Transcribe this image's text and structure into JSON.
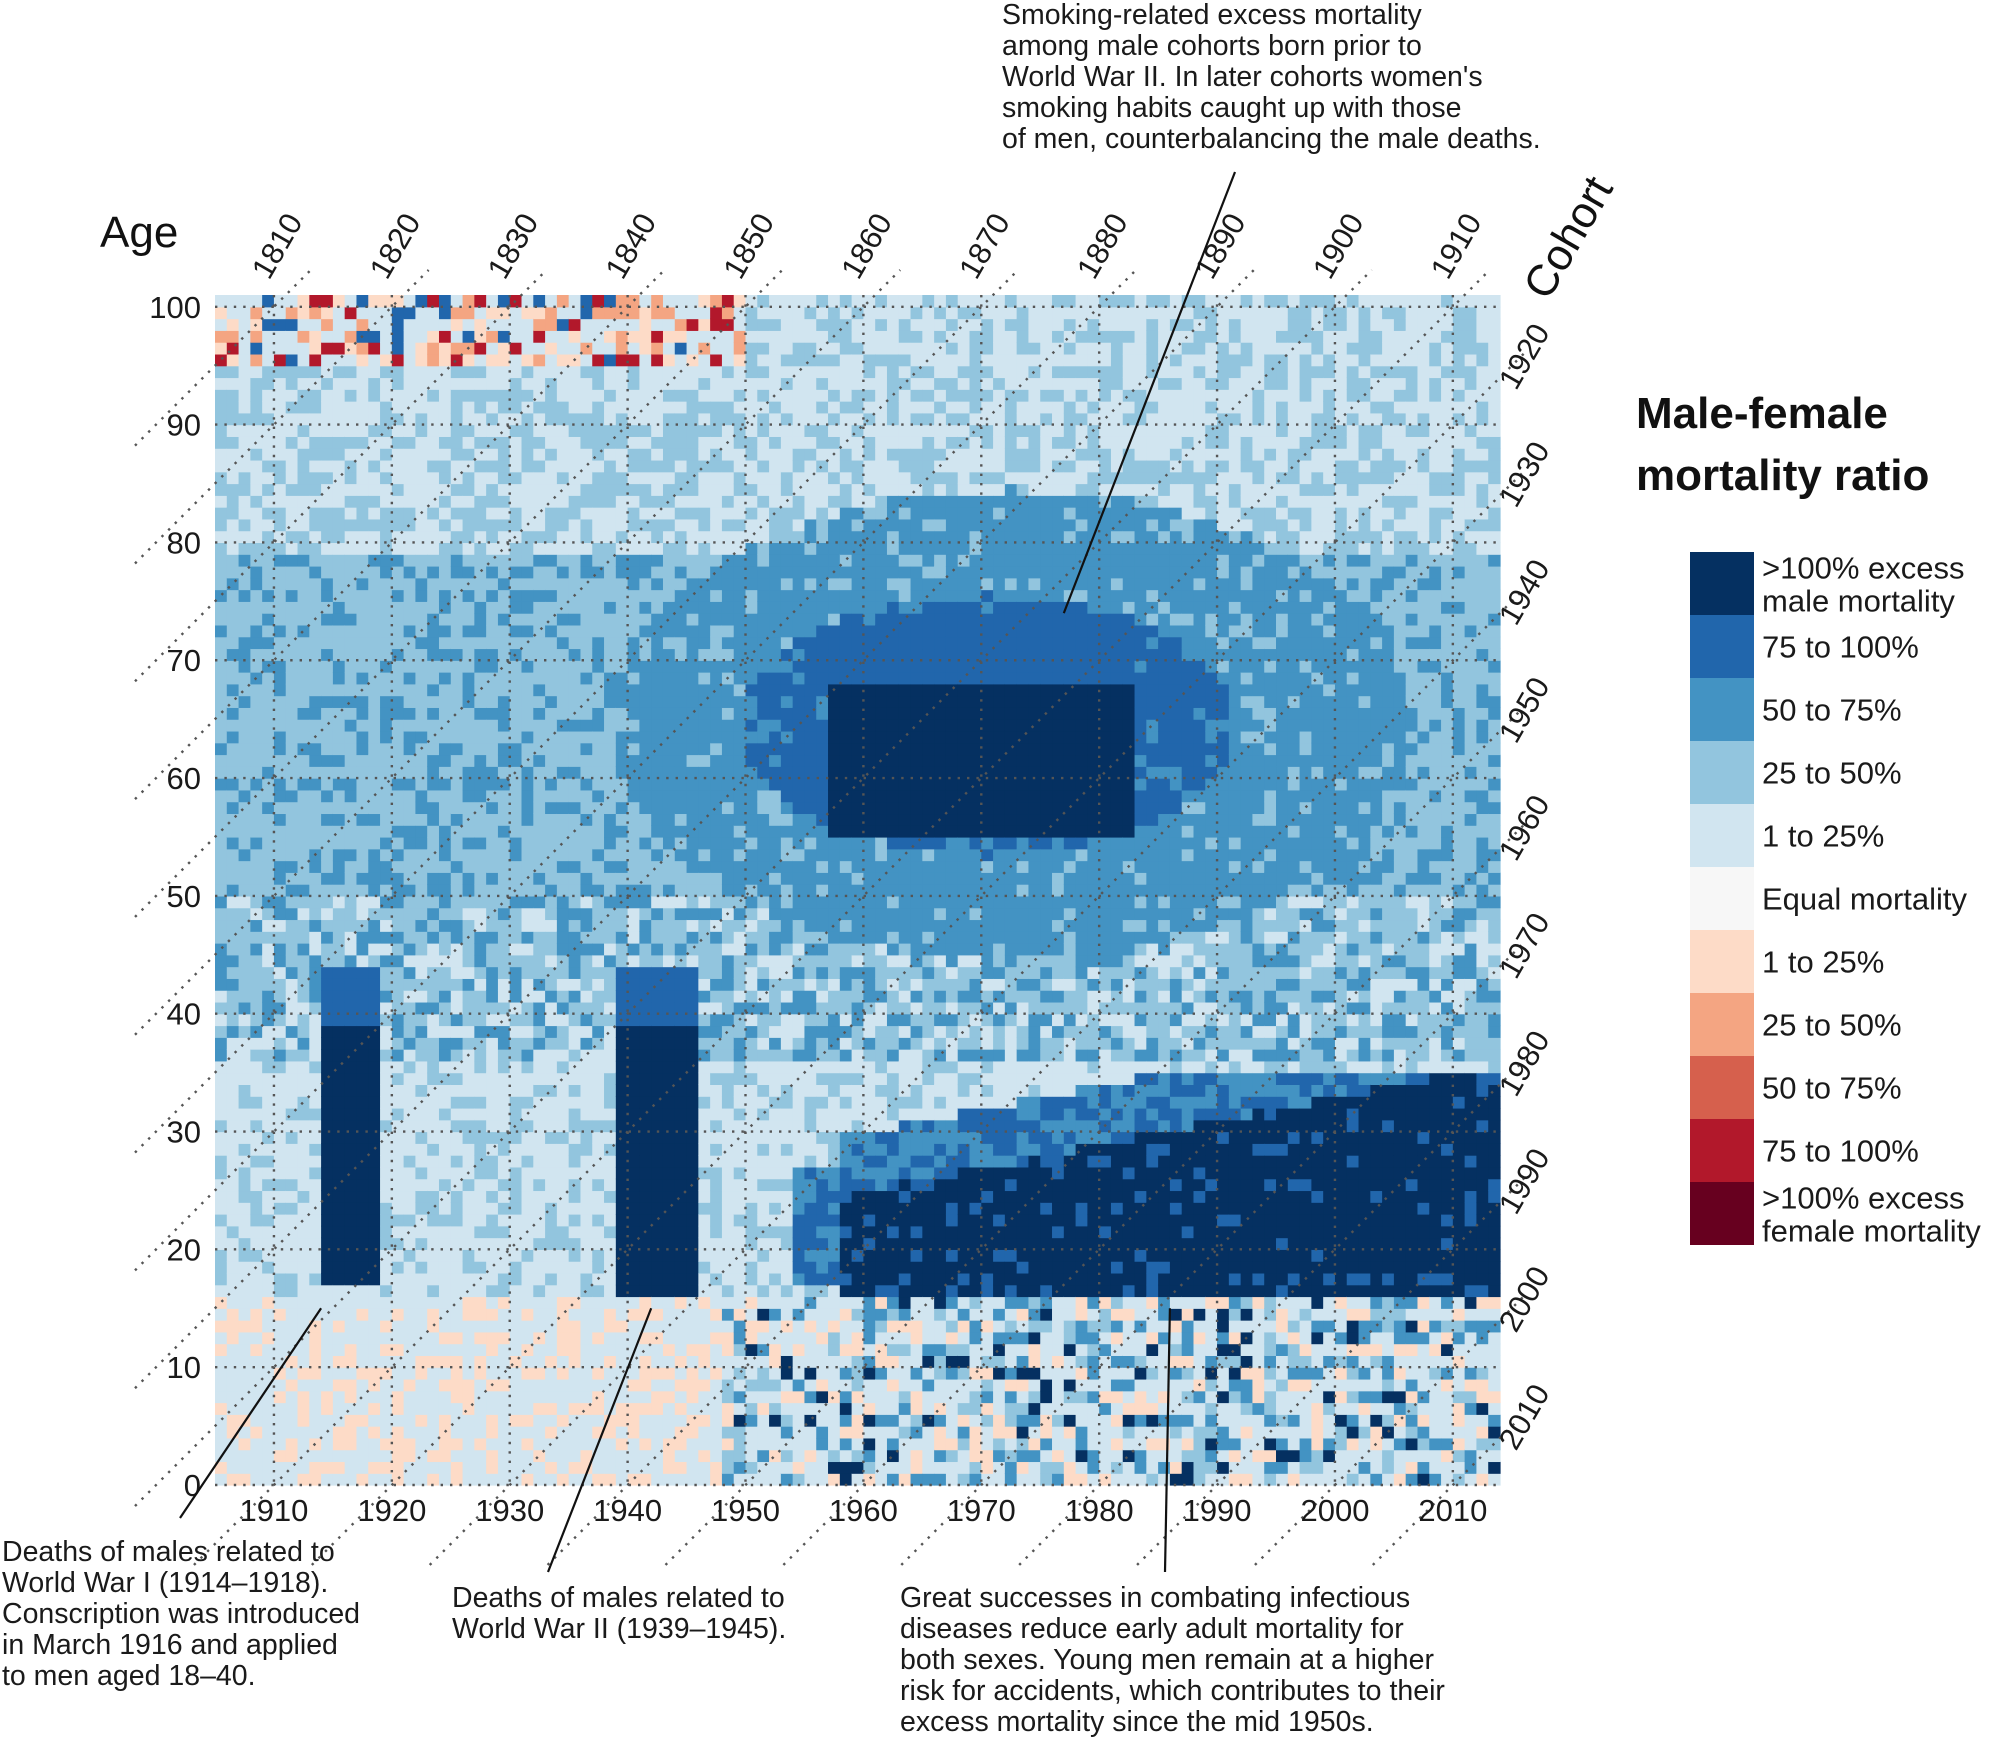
{
  "chart_data": {
    "type": "heatmap",
    "title": "",
    "xlabel": "",
    "ylabel": "Age",
    "cohort_label": "Cohort",
    "x_range": [
      1905,
      2014
    ],
    "y_range": [
      0,
      101
    ],
    "x_ticks": [
      1910,
      1920,
      1930,
      1940,
      1950,
      1960,
      1970,
      1980,
      1990,
      2000,
      2010
    ],
    "y_ticks": [
      0,
      10,
      20,
      30,
      40,
      50,
      60,
      70,
      80,
      90,
      100
    ],
    "cohort_ticks_top": [
      1810,
      1820,
      1830,
      1840,
      1850,
      1860,
      1870,
      1880,
      1890,
      1900,
      1910
    ],
    "cohort_ticks_right": [
      1920,
      1930,
      1940,
      1950,
      1960,
      1970,
      1980,
      1990,
      2000,
      2010
    ],
    "grid": true,
    "legend": {
      "title_lines": [
        "Male-female",
        "mortality ratio"
      ],
      "position": "right",
      "categories": [
        {
          "label": ">100% excess\nmale mortality",
          "color": "#053061"
        },
        {
          "label": "75 to 100%",
          "color": "#2166ac"
        },
        {
          "label": "50 to 75%",
          "color": "#4393c3"
        },
        {
          "label": "25 to 50%",
          "color": "#92c5de"
        },
        {
          "label": "1 to 25%",
          "color": "#d1e5f0"
        },
        {
          "label": "Equal mortality",
          "color": "#f7f7f7"
        },
        {
          "label": "1 to 25%",
          "color": "#fddbc7"
        },
        {
          "label": "25 to 50%",
          "color": "#f4a582"
        },
        {
          "label": "50 to 75%",
          "color": "#d6604d"
        },
        {
          "label": "75 to 100%",
          "color": "#b2182b"
        },
        {
          "label": ">100% excess\nfemale mortality",
          "color": "#67001f"
        }
      ]
    },
    "regions": [
      {
        "name": "WWI male deaths",
        "years": [
          1914,
          1918
        ],
        "ages": [
          17,
          43
        ],
        "level": 0
      },
      {
        "name": "WWII male deaths",
        "years": [
          1939,
          1945
        ],
        "ages": [
          16,
          43
        ],
        "level": 0
      },
      {
        "name": "Smoking-related excess mortality",
        "years": [
          1957,
          1982
        ],
        "ages": [
          55,
          72
        ],
        "level": 0
      },
      {
        "name": "Young adult male excess mortality",
        "years": [
          1958,
          2014
        ],
        "ages": [
          16,
          36
        ],
        "level": 0
      }
    ],
    "annotations": [
      {
        "id": "smoking",
        "lines": [
          "Smoking-related excess mortality",
          "among male cohorts born prior to",
          "World War II. In later cohorts women's",
          "smoking habits caught up with those",
          "of men, counterbalancing the male deaths."
        ],
        "point": [
          1977,
          74
        ]
      },
      {
        "id": "wwi",
        "lines": [
          "Deaths of males related to",
          "World War I (1914–1918).",
          "Conscription was introduced",
          "in March 1916 and applied",
          "to men aged 18–40."
        ],
        "point": [
          1914,
          15
        ]
      },
      {
        "id": "wwii",
        "lines": [
          "Deaths of males related to",
          "World War II (1939–1945)."
        ],
        "point": [
          1942,
          15
        ]
      },
      {
        "id": "infectious",
        "lines": [
          "Great successes in combating infectious",
          "diseases reduce early adult mortality for",
          "both sexes. Young men remain at a higher",
          "risk for accidents, which contributes to their",
          "excess mortality since the mid 1950s."
        ],
        "point": [
          1986,
          15
        ]
      }
    ]
  }
}
